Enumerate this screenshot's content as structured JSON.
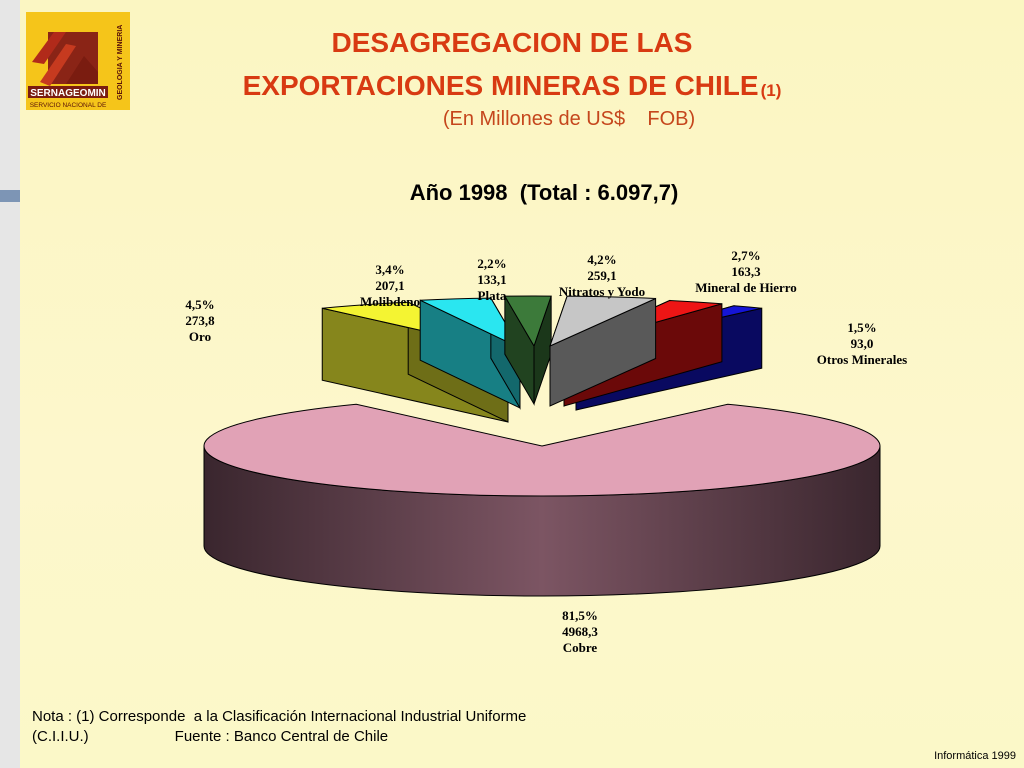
{
  "logo": {
    "name": "SERNAGEOMIN",
    "side_text": "GEOLOGIA Y MINERIA",
    "bottom_text": "SERVICIO NACIONAL DE"
  },
  "title": {
    "line1": "DESAGREGACION  DE LAS",
    "line2": "EXPORTACIONES MINERAS DE CHILE",
    "line2_sup": "(1)"
  },
  "subtitle": "(En Millones de US$    FOB)",
  "chart_data": {
    "type": "pie",
    "title": "Año 1998  (Total : 6.097,7)",
    "total": 6097.7,
    "slices": [
      {
        "name": "Cobre",
        "percent": "81,5%",
        "value": "4968,3",
        "value_num": 4968.3,
        "color": "#e1a2b6"
      },
      {
        "name": "Oro",
        "percent": "4,5%",
        "value": "273,8",
        "value_num": 273.8,
        "color": "#f4f432"
      },
      {
        "name": "Molibdeno",
        "percent": "3,4%",
        "value": "207,1",
        "value_num": 207.1,
        "color": "#2ae6f0"
      },
      {
        "name": "Plata",
        "percent": "2,2%",
        "value": "133,1",
        "value_num": 133.1,
        "color": "#3c7a3a"
      },
      {
        "name": "Nitratos  y Yodo",
        "percent": "4,2%",
        "value": "259,1",
        "value_num": 259.1,
        "color": "#c6c6c6"
      },
      {
        "name": "Mineral de Hierro",
        "percent": "2,7%",
        "value": "163,3",
        "value_num": 163.3,
        "color": "#ee1515"
      },
      {
        "name": "Otros Minerales",
        "percent": "1,5%",
        "value": "93,0",
        "value_num": 93.0,
        "color": "#1515d6"
      }
    ]
  },
  "notes": {
    "line1": "Nota : (1) Corresponde  a la Clasificación Internacional Industrial Uniforme",
    "line2_left": "(C.I.I.U.)",
    "line2_source": "Fuente : Banco Central de Chile"
  },
  "credit": "Informática 1999"
}
